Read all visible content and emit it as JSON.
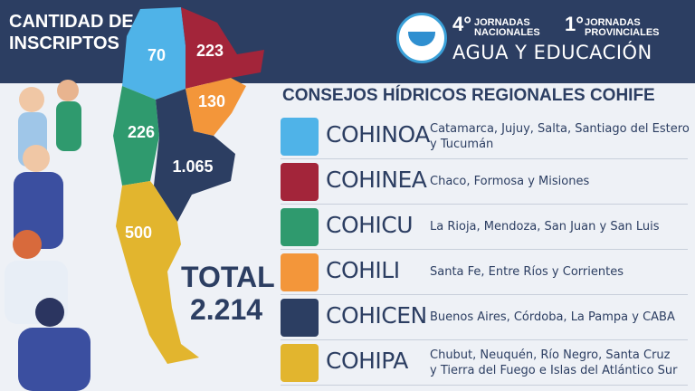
{
  "header": {
    "title_lines": [
      "CANTIDAD DE",
      "INSCRIPTOS"
    ],
    "event": {
      "national_number": "4°",
      "national_lines": [
        "JORNADAS",
        "NACIONALES"
      ],
      "provincial_number": "1°",
      "provincial_lines": [
        "JORNADAS",
        "PROVINCIALES"
      ],
      "name": "AGUA Y EDUCACIÓN"
    }
  },
  "map": {
    "regions": [
      {
        "label": "70"
      },
      {
        "label": "223"
      },
      {
        "label": "130"
      },
      {
        "label": "226"
      },
      {
        "label": "1.065"
      },
      {
        "label": "500"
      }
    ]
  },
  "total": {
    "label": "TOTAL",
    "value": "2.214"
  },
  "legend": {
    "title": "CONSEJOS HÍDRICOS REGIONALES COHIFE",
    "rows": [
      {
        "code": "COHINOA",
        "provinces": [
          "Catamarca, Jujuy, Salta, Santiago del Estero",
          "y Tucumán"
        ]
      },
      {
        "code": "COHINEA",
        "provinces": [
          "Chaco, Formosa y Misiones"
        ]
      },
      {
        "code": "COHICU",
        "provinces": [
          "La Rioja, Mendoza, San Juan y San Luis"
        ]
      },
      {
        "code": "COHILI",
        "provinces": [
          "Santa Fe, Entre Ríos y Corrientes"
        ]
      },
      {
        "code": "COHICEN",
        "provinces": [
          "Buenos Aires, Córdoba, La Pampa y CABA"
        ]
      },
      {
        "code": "COHIPA",
        "provinces": [
          "Chubut, Neuquén, Río Negro, Santa Cruz",
          "y Tierra del Fuego e Islas del Atlántico Sur"
        ]
      }
    ]
  }
}
